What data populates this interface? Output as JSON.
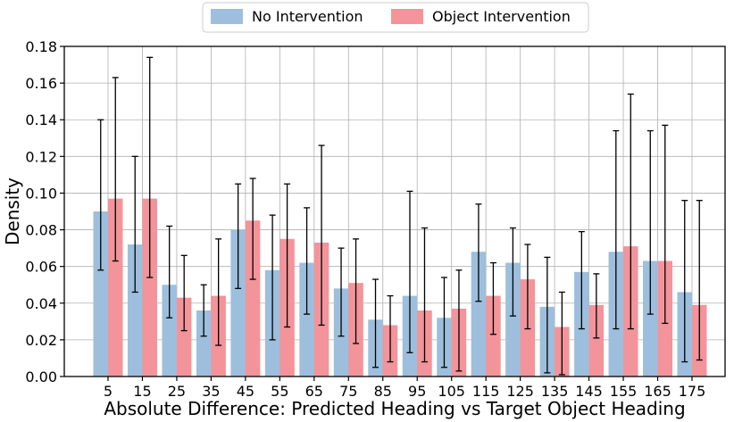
{
  "chart_data": {
    "type": "bar",
    "title": "",
    "xlabel": "Absolute Difference: Predicted Heading vs Target Object Heading",
    "ylabel": "Density",
    "ylim": [
      0,
      0.18
    ],
    "yticks": [
      0.0,
      0.02,
      0.04,
      0.06,
      0.08,
      0.1,
      0.12,
      0.14,
      0.16,
      0.18
    ],
    "ytick_labels": [
      "0.00",
      "0.02",
      "0.04",
      "0.06",
      "0.08",
      "0.10",
      "0.12",
      "0.14",
      "0.16",
      "0.18"
    ],
    "grid": true,
    "legend_position": "top-center",
    "categories": [
      "5",
      "15",
      "25",
      "35",
      "45",
      "55",
      "65",
      "75",
      "85",
      "95",
      "105",
      "115",
      "125",
      "135",
      "145",
      "155",
      "165",
      "175"
    ],
    "series": [
      {
        "name": "No Intervention",
        "color": "#9dbfdd",
        "values": [
          0.09,
          0.072,
          0.05,
          0.036,
          0.08,
          0.058,
          0.062,
          0.048,
          0.031,
          0.044,
          0.032,
          0.068,
          0.062,
          0.038,
          0.057,
          0.068,
          0.063,
          0.046
        ],
        "err_low": [
          0.058,
          0.046,
          0.032,
          0.022,
          0.048,
          0.02,
          0.034,
          0.022,
          0.005,
          0.013,
          0.005,
          0.041,
          0.033,
          0.002,
          0.026,
          0.026,
          0.034,
          0.008
        ],
        "err_high": [
          0.14,
          0.12,
          0.082,
          0.05,
          0.105,
          0.088,
          0.092,
          0.07,
          0.053,
          0.101,
          0.054,
          0.094,
          0.081,
          0.065,
          0.079,
          0.134,
          0.134,
          0.096
        ]
      },
      {
        "name": "Object Intervention",
        "color": "#f2949a",
        "values": [
          0.097,
          0.097,
          0.043,
          0.044,
          0.085,
          0.075,
          0.073,
          0.051,
          0.028,
          0.036,
          0.037,
          0.044,
          0.053,
          0.027,
          0.039,
          0.071,
          0.063,
          0.039
        ],
        "err_low": [
          0.063,
          0.054,
          0.025,
          0.017,
          0.053,
          0.027,
          0.028,
          0.018,
          0.008,
          0.008,
          0.003,
          0.023,
          0.026,
          0.001,
          0.021,
          0.026,
          0.029,
          0.009
        ],
        "err_high": [
          0.163,
          0.174,
          0.066,
          0.075,
          0.108,
          0.105,
          0.126,
          0.075,
          0.044,
          0.081,
          0.058,
          0.062,
          0.072,
          0.046,
          0.056,
          0.154,
          0.137,
          0.096
        ]
      }
    ]
  }
}
